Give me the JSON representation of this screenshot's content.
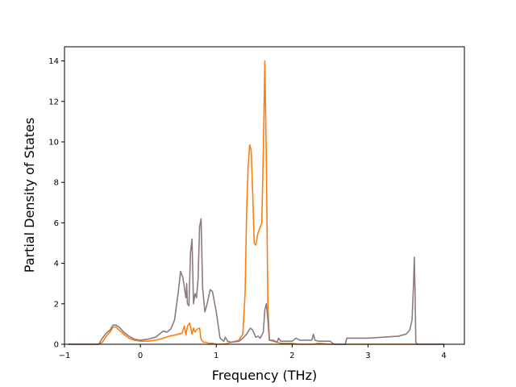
{
  "chart_data": {
    "type": "line",
    "title": "",
    "xlabel": "Frequency (THz)",
    "ylabel": "Partial Density of States",
    "xlim": [
      -1.0,
      4.27
    ],
    "ylim": [
      0,
      14.7
    ],
    "xticks": [
      -1,
      0,
      1,
      2,
      3,
      4
    ],
    "yticks": [
      0,
      2,
      4,
      6,
      8,
      10,
      12,
      14
    ],
    "grid": false,
    "legend": "none",
    "series": [
      {
        "color": "#ff7f0e",
        "x": [
          -0.95,
          -0.55,
          -0.5,
          -0.45,
          -0.4,
          -0.36,
          -0.32,
          -0.28,
          -0.22,
          -0.15,
          -0.08,
          0.0,
          0.1,
          0.2,
          0.3,
          0.38,
          0.45,
          0.5,
          0.55,
          0.58,
          0.6,
          0.62,
          0.65,
          0.68,
          0.7,
          0.72,
          0.75,
          0.78,
          0.8,
          0.83,
          0.86,
          0.9,
          0.95,
          1.0,
          1.05,
          1.1,
          1.12,
          1.15,
          1.2,
          1.3,
          1.35,
          1.38,
          1.4,
          1.42,
          1.44,
          1.46,
          1.48,
          1.5,
          1.52,
          1.55,
          1.6,
          1.62,
          1.64,
          1.66,
          1.68,
          1.7,
          1.75,
          1.8,
          1.85,
          1.9,
          2.0,
          2.1,
          2.2,
          2.28,
          2.35,
          2.5,
          2.55,
          2.7,
          2.8,
          3.0,
          3.2,
          3.4,
          3.55,
          3.6,
          3.62,
          3.63,
          4.0
        ],
        "y": [
          0,
          0,
          0.1,
          0.4,
          0.6,
          0.85,
          0.85,
          0.7,
          0.5,
          0.3,
          0.2,
          0.15,
          0.15,
          0.2,
          0.3,
          0.4,
          0.45,
          0.5,
          0.55,
          0.9,
          0.45,
          0.9,
          1.05,
          0.5,
          0.8,
          0.6,
          0.75,
          0.8,
          0.25,
          0.1,
          0.1,
          0.05,
          0.05,
          0.0,
          0.0,
          0.02,
          0.0,
          0.05,
          0.1,
          0.2,
          0.5,
          2.5,
          6.5,
          8.8,
          9.85,
          9.6,
          7.5,
          5.0,
          4.9,
          5.5,
          6.0,
          9.5,
          14.0,
          9.0,
          2.0,
          0.2,
          0.15,
          0.1,
          0.05,
          0.05,
          0.05,
          0.0,
          0.0,
          0.0,
          0.05,
          0.0,
          0.0,
          0.0,
          0.0,
          0.0,
          0.0,
          0.0,
          0.0,
          0.0,
          0.0,
          0.0,
          0.0
        ]
      },
      {
        "color": "#8c7b82",
        "x": [
          -0.95,
          -0.55,
          -0.5,
          -0.45,
          -0.4,
          -0.36,
          -0.32,
          -0.28,
          -0.22,
          -0.15,
          -0.08,
          0.0,
          0.1,
          0.2,
          0.25,
          0.3,
          0.35,
          0.4,
          0.45,
          0.5,
          0.53,
          0.56,
          0.6,
          0.61,
          0.62,
          0.64,
          0.66,
          0.68,
          0.7,
          0.72,
          0.74,
          0.76,
          0.78,
          0.8,
          0.82,
          0.85,
          0.88,
          0.92,
          0.95,
          1.0,
          1.05,
          1.1,
          1.12,
          1.15,
          1.2,
          1.3,
          1.35,
          1.4,
          1.45,
          1.48,
          1.52,
          1.55,
          1.58,
          1.62,
          1.64,
          1.66,
          1.68,
          1.7,
          1.75,
          1.8,
          1.82,
          1.85,
          1.9,
          2.0,
          2.05,
          2.1,
          2.2,
          2.26,
          2.28,
          2.3,
          2.35,
          2.5,
          2.55,
          2.7,
          2.72,
          2.8,
          3.0,
          3.2,
          3.4,
          3.5,
          3.55,
          3.58,
          3.6,
          3.61,
          3.62,
          3.63,
          3.65,
          4.0
        ],
        "y": [
          0,
          0,
          0.3,
          0.55,
          0.7,
          0.95,
          0.95,
          0.85,
          0.6,
          0.4,
          0.25,
          0.2,
          0.25,
          0.35,
          0.5,
          0.65,
          0.6,
          0.75,
          1.2,
          2.6,
          3.6,
          3.3,
          2.3,
          3.0,
          2.0,
          1.9,
          4.5,
          5.2,
          2.0,
          2.5,
          2.3,
          3.2,
          5.8,
          6.2,
          2.8,
          1.6,
          2.0,
          2.7,
          2.6,
          1.6,
          0.3,
          0.15,
          0.35,
          0.15,
          0.1,
          0.15,
          0.3,
          0.5,
          0.8,
          0.7,
          0.35,
          0.4,
          0.3,
          0.6,
          1.7,
          2.0,
          1.2,
          0.2,
          0.2,
          0.1,
          0.3,
          0.15,
          0.15,
          0.15,
          0.3,
          0.2,
          0.2,
          0.2,
          0.5,
          0.2,
          0.15,
          0.15,
          0.0,
          0.0,
          0.3,
          0.3,
          0.3,
          0.35,
          0.4,
          0.5,
          0.7,
          1.2,
          3.0,
          4.3,
          2.5,
          0.1,
          0.0,
          0.0
        ]
      }
    ]
  }
}
